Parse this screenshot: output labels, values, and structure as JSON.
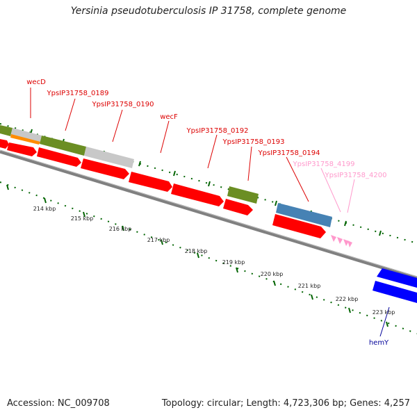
{
  "title": "Yersinia pseudotuberculosis IP 31758, complete genome",
  "footer": {
    "accession": "Accession: NC_009708",
    "topology": "Topology: circular; Length: 4,723,306 bp; Genes: 4,257"
  },
  "colors": {
    "cds_red": "#ff0000",
    "olive": "#6b8e23",
    "orange": "#ff8c00",
    "gray_feature": "#c8c8c8",
    "steel_blue": "#4682b4",
    "blue": "#0000ff",
    "pink": "#ff99cc",
    "tick_green": "#006400",
    "backbone": "#808080",
    "label_red": "#dd0000",
    "label_pink": "#ff99cc",
    "label_blue": "#000099"
  },
  "gene_labels": [
    {
      "text": "wecD",
      "color": "label_red"
    },
    {
      "text": "YpsIP31758_0189",
      "color": "label_red"
    },
    {
      "text": "YpsIP31758_0190",
      "color": "label_red"
    },
    {
      "text": "wecF",
      "color": "label_red"
    },
    {
      "text": "YpsIP31758_0192",
      "color": "label_red"
    },
    {
      "text": "YpsIP31758_0193",
      "color": "label_red"
    },
    {
      "text": "YpsIP31758_0194",
      "color": "label_red"
    },
    {
      "text": "YpsIP31758_4199",
      "color": "label_pink"
    },
    {
      "text": "YpsIP31758_4200",
      "color": "label_pink"
    },
    {
      "text": "hemY",
      "color": "label_blue"
    }
  ],
  "scale_labels": [
    "214 kbp",
    "215 kbp",
    "216 kbp",
    "217 kbp",
    "218 kbp",
    "219 kbp",
    "220 kbp",
    "221 kbp",
    "222 kbp",
    "223 kbp"
  ]
}
